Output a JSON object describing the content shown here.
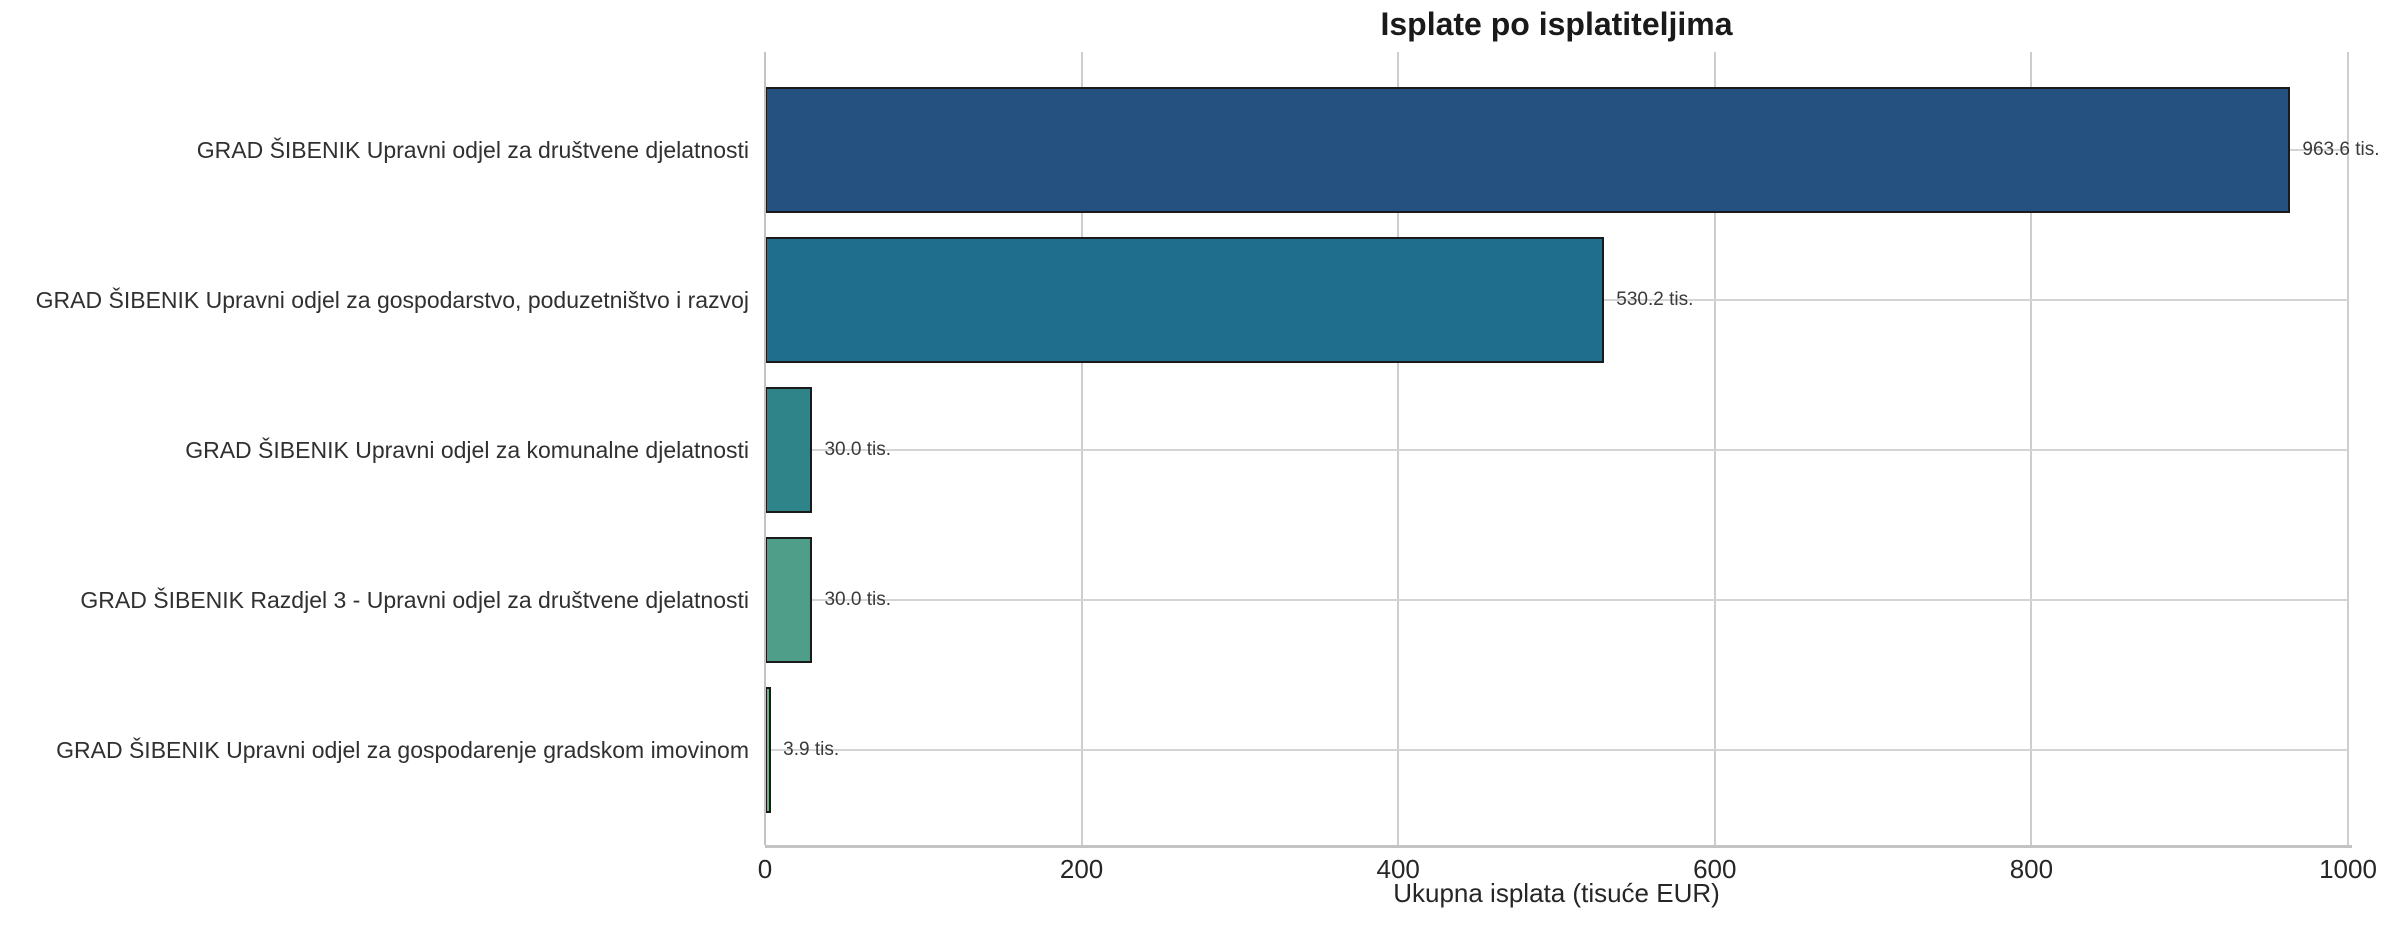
{
  "chart_data": {
    "type": "bar",
    "orientation": "horizontal",
    "title": "Isplate po isplatiteljima",
    "xlabel": "Ukupna isplata (tisuće EUR)",
    "ylabel": "",
    "categories": [
      "GRAD ŠIBENIK Upravni odjel za društvene djelatnosti",
      "GRAD ŠIBENIK Upravni odjel za gospodarstvo, poduzetništvo i razvoj",
      "GRAD ŠIBENIK Upravni odjel za komunalne djelatnosti",
      "GRAD ŠIBENIK Razdjel 3 - Upravni odjel za društvene djelatnosti",
      "GRAD ŠIBENIK Upravni odjel za gospodarenje gradskom imovinom"
    ],
    "values": [
      963.6,
      530.2,
      30.0,
      30.0,
      3.9
    ],
    "value_labels": [
      "963.6 tis.",
      "530.2 tis.",
      "30.0 tis.",
      "30.0 tis.",
      "3.9 tis."
    ],
    "unit_suffix": "tis.",
    "bar_colors": [
      "#255180",
      "#1f6e8e",
      "#2e8488",
      "#4f9e8a",
      "#72b186"
    ],
    "bar_edge_color": "#1a1a1a",
    "xlim": [
      0,
      1000
    ],
    "xticks": [
      "0",
      "200",
      "400",
      "600",
      "800",
      "1000"
    ],
    "xtick_values": [
      0,
      200,
      400,
      600,
      800,
      1000
    ],
    "grid": true,
    "grid_axis": "both",
    "legend": false,
    "background": "#ffffff",
    "grid_color": "#cdcdcd",
    "text_color": "#262626"
  }
}
